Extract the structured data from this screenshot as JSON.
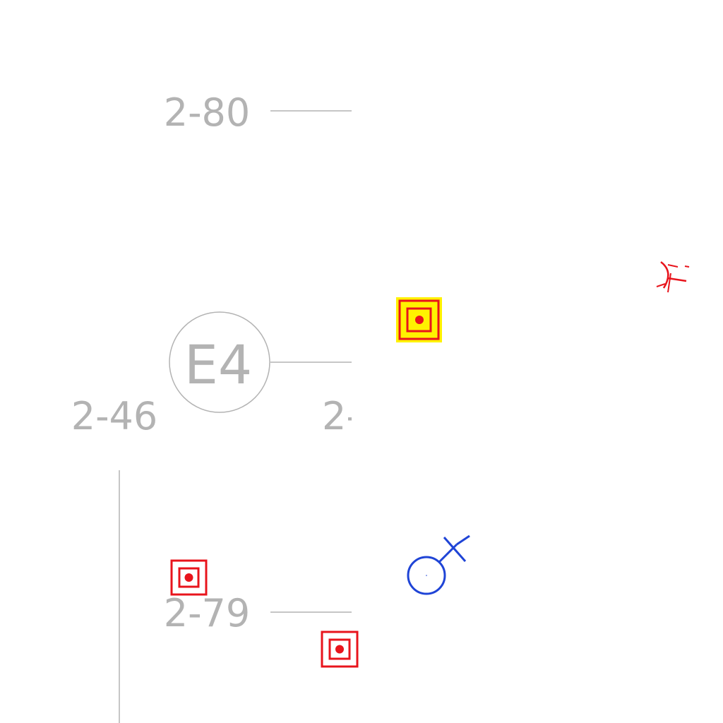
{
  "colors": {
    "background": "#ffffff",
    "grid": "#b3b3b3",
    "marker_red": "#e8141c",
    "marker_highlight": "#fff200",
    "symbol_blue": "#1f44d6"
  },
  "grid": {
    "bubble": {
      "label": "E4"
    },
    "row_labels": {
      "top": "2-80",
      "left": "2-46",
      "clipped": "2-",
      "bottom": "2-79"
    }
  },
  "symbols": [
    {
      "name": "target-marker",
      "icon": "concentric-square-target-icon",
      "highlighted": true
    },
    {
      "name": "target-marker",
      "icon": "concentric-square-target-icon",
      "highlighted": false
    },
    {
      "name": "target-marker",
      "icon": "concentric-square-target-icon",
      "highlighted": false
    },
    {
      "name": "blue-symbol",
      "icon": "circle-cross-device-icon"
    },
    {
      "name": "red-symbol",
      "icon": "red-partial-cross-icon"
    }
  ]
}
